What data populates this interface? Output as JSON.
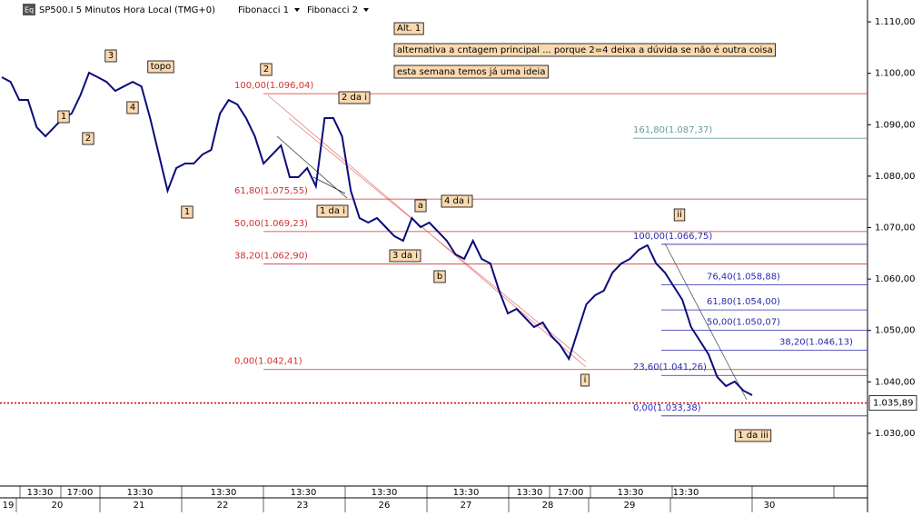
{
  "chart_data": {
    "type": "line",
    "title": "SP500.I 5 Minutos Hora Local (TMG+0)",
    "menus": [
      "Fibonacci 1",
      "Fibonacci 2"
    ],
    "icon": "Eq",
    "series": [
      {
        "color": "#0b0b7a",
        "values": [
          1099.23,
          1098.34,
          1094.81,
          1094.81,
          1089.51,
          1087.75,
          1089.51,
          1091.28,
          1092.16,
          1095.7,
          1100.11,
          1099.23,
          1098.34,
          1096.58,
          1097.46,
          1098.34,
          1097.46,
          1091.28,
          1084.22,
          1077.15,
          1081.57,
          1082.45,
          1082.45,
          1084.22,
          1085.1,
          1092.16,
          1094.81,
          1093.93,
          1091.28,
          1087.75,
          1082.45,
          1084.22,
          1085.98,
          1079.8,
          1079.8,
          1081.57,
          1078.04,
          1091.28,
          1091.28,
          1087.75,
          1077.15,
          1071.85,
          1070.97,
          1071.85,
          1070.09,
          1068.32,
          1067.44,
          1071.85,
          1070.09,
          1070.97,
          1069.21,
          1067.44,
          1064.79,
          1063.91,
          1067.44,
          1063.91,
          1063.02,
          1057.73,
          1053.31,
          1054.19,
          1052.43,
          1050.66,
          1051.55,
          1048.9,
          1047.13,
          1044.48,
          1049.78,
          1055.08,
          1056.84,
          1057.73,
          1061.26,
          1063.02,
          1063.91,
          1065.67,
          1066.56,
          1063.02,
          1061.26,
          1058.61,
          1055.96,
          1050.66,
          1048.01,
          1045.36,
          1040.95,
          1039.18,
          1040.07,
          1038.3,
          1037.42
        ]
      }
    ],
    "ylim": [
      1019.75,
      1114.25
    ],
    "yticks": [
      {
        "value": 1030,
        "label": "1.030,00"
      },
      {
        "value": 1040,
        "label": "1.040,00"
      },
      {
        "value": 1050,
        "label": "1.050,00"
      },
      {
        "value": 1060,
        "label": "1.060,00"
      },
      {
        "value": 1070,
        "label": "1.070,00"
      },
      {
        "value": 1080,
        "label": "1.080,00"
      },
      {
        "value": 1090,
        "label": "1.090,00"
      },
      {
        "value": 1100,
        "label": "1.100,00"
      },
      {
        "value": 1110,
        "label": "1.110,00"
      }
    ],
    "current_price": {
      "value": 1035.89,
      "label": "1.035,89"
    },
    "fibonacci_1": [
      {
        "value": 1096.04,
        "label": "100,00(1.096,04)"
      },
      {
        "value": 1075.55,
        "label": "61,80(1.075,55)"
      },
      {
        "value": 1069.23,
        "label": "50,00(1.069,23)"
      },
      {
        "value": 1062.9,
        "label": "38,20(1.062,90)"
      },
      {
        "value": 1042.41,
        "label": "0,00(1.042,41)"
      }
    ],
    "fibonacci_2": [
      {
        "value": 1087.37,
        "label": "161,80(1.087,37)"
      },
      {
        "value": 1066.75,
        "label": "100,00(1.066,75)"
      },
      {
        "value": 1058.88,
        "label": "76,40(1.058,88)"
      },
      {
        "value": 1054.0,
        "label": "61,80(1.054,00)"
      },
      {
        "value": 1050.07,
        "label": "50,00(1.050,07)"
      },
      {
        "value": 1046.13,
        "label": "38,20(1.046,13)"
      },
      {
        "value": 1041.26,
        "label": "23,60(1.041,26)"
      },
      {
        "value": 1033.38,
        "label": "0,00(1.033,38)"
      }
    ],
    "wave_labels": [
      "1",
      "2",
      "3",
      "4",
      "topo",
      "1",
      "2",
      "2 da i",
      "1 da i",
      "a",
      "4 da i",
      "3 da i",
      "b",
      "i",
      "ii",
      "1 da iii"
    ],
    "notes": [
      "Alt. 1",
      "alternativa a cntagem principal ... porque  2=4 deixa a dúvida se não é outra coisa",
      "esta semana temos já uma ideia"
    ],
    "time_labels": [
      "13:30",
      "17:00",
      "13:30",
      "13:30",
      "13:30",
      "13:30",
      "13:30",
      "13:30",
      "17:00",
      "13:30",
      "13:30"
    ],
    "day_labels": [
      "19",
      "20",
      "21",
      "22",
      "23",
      "26",
      "27",
      "28",
      "29",
      "30"
    ]
  }
}
